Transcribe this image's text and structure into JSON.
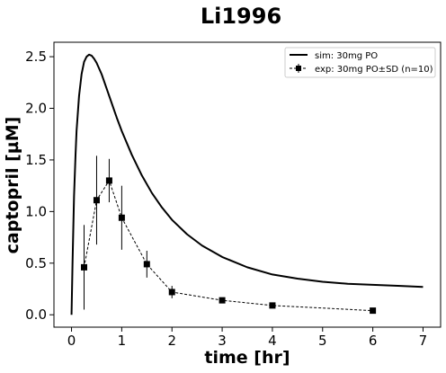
{
  "chart_data": {
    "type": "line",
    "title": "Li1996",
    "xlabel": "time [hr]",
    "ylabel": "captopril [µM]",
    "xlim": [
      -0.35,
      7.35
    ],
    "ylim": [
      -0.12,
      2.64
    ],
    "xticks": [
      0,
      1,
      2,
      3,
      4,
      5,
      6,
      7
    ],
    "yticks": [
      0.0,
      0.5,
      1.0,
      1.5,
      2.0,
      2.5
    ],
    "ytick_labels": [
      "0.0",
      "0.5",
      "1.0",
      "1.5",
      "2.0",
      "2.5"
    ],
    "grid": false,
    "legend": {
      "placement": "top-right"
    },
    "series": [
      {
        "name": "sim: 30mg PO",
        "style": "solid",
        "color": "#000000",
        "x": [
          0,
          0.02,
          0.05,
          0.08,
          0.1,
          0.15,
          0.2,
          0.25,
          0.3,
          0.35,
          0.4,
          0.45,
          0.5,
          0.6,
          0.7,
          0.8,
          0.9,
          1.0,
          1.2,
          1.4,
          1.6,
          1.8,
          2.0,
          2.3,
          2.6,
          3.0,
          3.5,
          4.0,
          4.5,
          5.0,
          5.5,
          6.0,
          6.5,
          7.0
        ],
        "y": [
          0.0,
          0.5,
          1.15,
          1.55,
          1.78,
          2.12,
          2.33,
          2.45,
          2.5,
          2.52,
          2.51,
          2.48,
          2.44,
          2.33,
          2.19,
          2.05,
          1.91,
          1.78,
          1.55,
          1.35,
          1.18,
          1.04,
          0.92,
          0.78,
          0.67,
          0.56,
          0.46,
          0.39,
          0.35,
          0.32,
          0.3,
          0.29,
          0.28,
          0.27
        ]
      },
      {
        "name": "exp: 30mg PO±SD (n=10)",
        "style": "dashed",
        "marker": "square",
        "color": "#000000",
        "x": [
          0.25,
          0.5,
          0.75,
          1.0,
          1.5,
          2.0,
          3.0,
          4.0,
          6.0
        ],
        "y": [
          0.46,
          1.11,
          1.3,
          0.94,
          0.49,
          0.22,
          0.14,
          0.09,
          0.04
        ],
        "sd": [
          0.41,
          0.43,
          0.21,
          0.31,
          0.13,
          0.06,
          0.02,
          0.02,
          0.02
        ]
      }
    ]
  }
}
